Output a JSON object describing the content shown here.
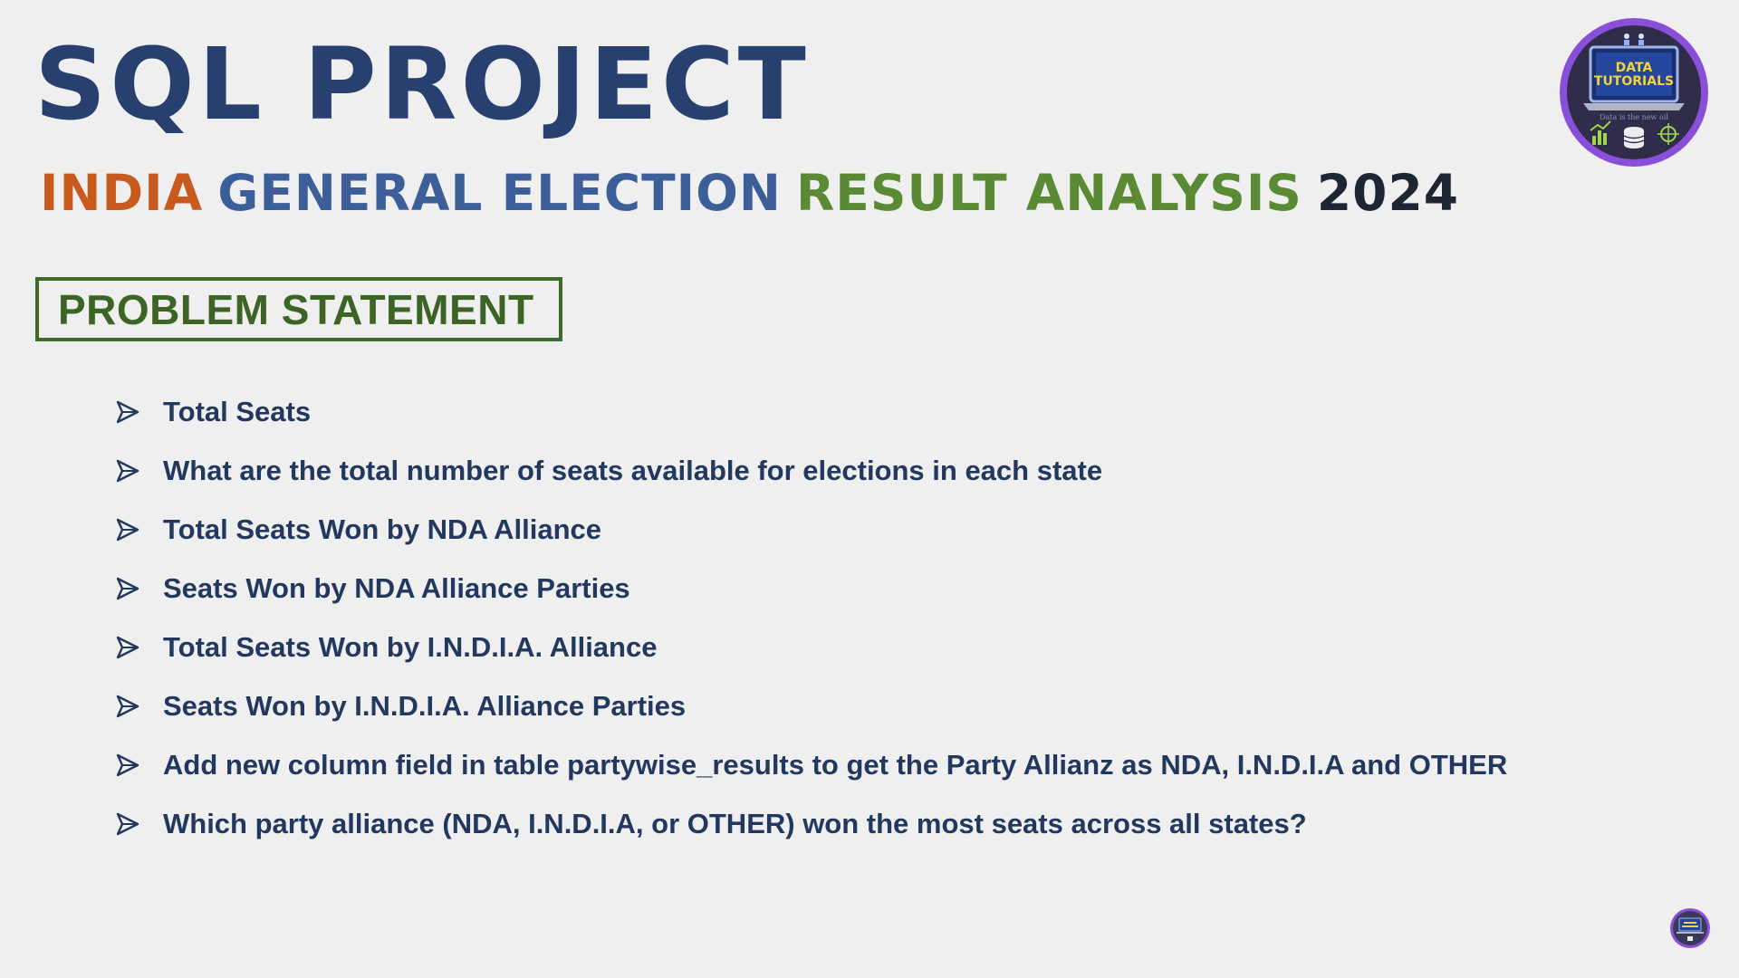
{
  "title": {
    "text": "SQL PROJECT",
    "color": "#27406f"
  },
  "subtitle": {
    "parts": [
      {
        "text": "INDIA",
        "color": "#c85a1e"
      },
      {
        "text": "GENERAL ELECTION",
        "color": "#3d5f99"
      },
      {
        "text": "RESULT ANALYSIS",
        "color": "#5b8a35"
      },
      {
        "text": "2024",
        "color": "#1e2633"
      }
    ]
  },
  "problem_statement": {
    "label": "PROBLEM STATEMENT",
    "border_color": "#3f6b2a",
    "text_color": "#3b6425"
  },
  "bullet_icon": "arrowhead-icon",
  "bullets": [
    "Total Seats",
    "What are the total number of seats available for elections in each state",
    "Total Seats Won by NDA Alliance",
    "Seats Won by NDA Alliance Parties",
    "Total Seats Won by I.N.D.I.A. Alliance",
    "Seats Won by I.N.D.I.A. Alliance Parties",
    "Add new column field in table partywise_results to get the Party Allianz as NDA, I.N.D.I.A and OTHER",
    "Which party alliance (NDA, I.N.D.I.A, or OTHER) won the most seats across all states?"
  ],
  "logo": {
    "line1": "DATA",
    "line2": "TUTORIALS",
    "tagline": "Data is the new oil",
    "ring_color": "#8a4fd8",
    "text_color": "#f3d33a"
  }
}
